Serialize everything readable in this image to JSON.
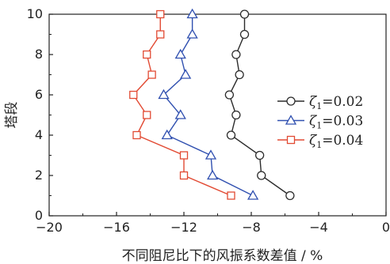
{
  "chart_data": {
    "type": "line",
    "xlabel": "不同阻尼比下的风振系数差值 / %",
    "ylabel": "塔段",
    "xlim": [
      -20,
      0
    ],
    "ylim": [
      0,
      10
    ],
    "xticks": [
      "−20",
      "−16",
      "−12",
      "−8",
      "−4",
      "0"
    ],
    "yticks": [
      "0",
      "2",
      "4",
      "6",
      "8",
      "10"
    ],
    "grid": false,
    "legend_position": "right",
    "series": [
      {
        "name": "ζ1=0.02",
        "legend_label": "−○− ζ",
        "sub": "1",
        "value_text": "=0.02",
        "color": "#2b2b2b",
        "marker": "circle",
        "points": [
          {
            "x": -5.7,
            "y": 1
          },
          {
            "x": -7.4,
            "y": 2
          },
          {
            "x": -7.5,
            "y": 3
          },
          {
            "x": -9.2,
            "y": 4
          },
          {
            "x": -8.9,
            "y": 5
          },
          {
            "x": -9.3,
            "y": 6
          },
          {
            "x": -8.7,
            "y": 7
          },
          {
            "x": -8.9,
            "y": 8
          },
          {
            "x": -8.4,
            "y": 9
          },
          {
            "x": -8.4,
            "y": 10
          }
        ]
      },
      {
        "name": "ζ1=0.03",
        "legend_label": "ζ",
        "sub": "1",
        "value_text": "=0.03",
        "color": "#3050b0",
        "marker": "triangle",
        "points": [
          {
            "x": -7.9,
            "y": 1
          },
          {
            "x": -10.3,
            "y": 2
          },
          {
            "x": -10.4,
            "y": 3
          },
          {
            "x": -13.0,
            "y": 4
          },
          {
            "x": -12.2,
            "y": 5
          },
          {
            "x": -13.2,
            "y": 6
          },
          {
            "x": -11.9,
            "y": 7
          },
          {
            "x": -12.2,
            "y": 8
          },
          {
            "x": -11.5,
            "y": 9
          },
          {
            "x": -11.5,
            "y": 10
          }
        ]
      },
      {
        "name": "ζ1=0.04",
        "legend_label": "ζ",
        "sub": "1",
        "value_text": "=0.04",
        "color": "#e24a33",
        "marker": "square",
        "points": [
          {
            "x": -9.2,
            "y": 1
          },
          {
            "x": -12.0,
            "y": 2
          },
          {
            "x": -12.0,
            "y": 3
          },
          {
            "x": -14.8,
            "y": 4
          },
          {
            "x": -14.2,
            "y": 5
          },
          {
            "x": -15.0,
            "y": 6
          },
          {
            "x": -13.9,
            "y": 7
          },
          {
            "x": -14.2,
            "y": 8
          },
          {
            "x": -13.4,
            "y": 9
          },
          {
            "x": -13.4,
            "y": 10
          }
        ]
      }
    ]
  }
}
